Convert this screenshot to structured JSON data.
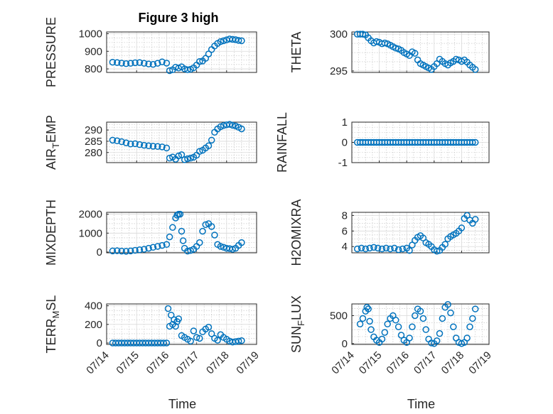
{
  "figure": {
    "title": "Figure 3 high"
  },
  "colors": {
    "marker": "#0072bd",
    "axis": "#262626",
    "grid": "#d9d9d9"
  },
  "chart_data": [
    {
      "type": "scatter",
      "ylabel": "PRESSURE",
      "xlabel": "",
      "title": "Figure 3 high",
      "xlim": [
        0,
        5
      ],
      "ylim": [
        780,
        1010
      ],
      "yticks": [
        800,
        900,
        1000
      ],
      "xticks": [
        0,
        1,
        2,
        3,
        4,
        5
      ],
      "xticklabels": [],
      "grid": true,
      "x": [
        0.2,
        0.35,
        0.5,
        0.65,
        0.8,
        0.95,
        1.1,
        1.25,
        1.4,
        1.55,
        1.7,
        1.85,
        2.0,
        2.1,
        2.2,
        2.3,
        2.4,
        2.5,
        2.6,
        2.7,
        2.8,
        2.9,
        3.0,
        3.1,
        3.2,
        3.3,
        3.4,
        3.5,
        3.6,
        3.7,
        3.8,
        3.9,
        4.0,
        4.1,
        4.2,
        4.3,
        4.4,
        4.5
      ],
      "y": [
        838,
        836,
        833,
        830,
        832,
        835,
        836,
        832,
        828,
        826,
        832,
        840,
        833,
        790,
        795,
        810,
        805,
        812,
        800,
        795,
        798,
        806,
        822,
        842,
        845,
        860,
        885,
        910,
        930,
        945,
        955,
        960,
        965,
        970,
        968,
        966,
        962,
        960
      ]
    },
    {
      "type": "scatter",
      "ylabel": "THETA",
      "xlabel": "",
      "xlim": [
        0,
        5
      ],
      "ylim": [
        294.8,
        300.3
      ],
      "yticks": [
        295,
        300
      ],
      "xticks": [
        0,
        1,
        2,
        3,
        4,
        5
      ],
      "xticklabels": [],
      "grid": true,
      "x": [
        0.2,
        0.3,
        0.4,
        0.5,
        0.6,
        0.7,
        0.8,
        0.9,
        1.0,
        1.1,
        1.2,
        1.3,
        1.4,
        1.5,
        1.6,
        1.7,
        1.8,
        1.9,
        2.0,
        2.1,
        2.2,
        2.3,
        2.4,
        2.5,
        2.6,
        2.7,
        2.8,
        2.9,
        3.0,
        3.1,
        3.2,
        3.3,
        3.4,
        3.5,
        3.6,
        3.7,
        3.8,
        3.9,
        4.0,
        4.1,
        4.2,
        4.3,
        4.4,
        4.5
      ],
      "y": [
        300,
        300,
        300,
        299.9,
        299.5,
        299.1,
        298.8,
        299,
        298.9,
        298.7,
        298.8,
        298.7,
        298.5,
        298.3,
        298.1,
        298,
        297.8,
        297.5,
        297.3,
        297.1,
        297.6,
        297.4,
        296.5,
        296,
        295.8,
        295.6,
        295.4,
        295.2,
        295.6,
        296,
        296.6,
        296.3,
        296,
        295.8,
        296.1,
        296.3,
        296.6,
        296.5,
        296.3,
        296.5,
        296.2,
        295.8,
        295.5,
        295.2
      ]
    },
    {
      "type": "scatter",
      "ylabel": "AIR_TEMP",
      "xlabel": "",
      "xlim": [
        0,
        5
      ],
      "ylim": [
        275.5,
        293.5
      ],
      "yticks": [
        280,
        285,
        290
      ],
      "xticks": [
        0,
        1,
        2,
        3,
        4,
        5
      ],
      "xticklabels": [],
      "grid": true,
      "x": [
        0.2,
        0.35,
        0.5,
        0.65,
        0.8,
        0.95,
        1.1,
        1.25,
        1.4,
        1.55,
        1.7,
        1.85,
        2.0,
        2.1,
        2.2,
        2.3,
        2.4,
        2.5,
        2.6,
        2.7,
        2.8,
        2.9,
        3.0,
        3.1,
        3.2,
        3.3,
        3.4,
        3.5,
        3.6,
        3.7,
        3.8,
        3.9,
        4.0,
        4.1,
        4.2,
        4.3,
        4.4,
        4.5
      ],
      "y": [
        285.5,
        285.2,
        284.8,
        284.3,
        283.8,
        283.9,
        283.5,
        283.2,
        283,
        282.8,
        282.7,
        282.5,
        282,
        277.5,
        278,
        277,
        278.5,
        279,
        276.8,
        277.2,
        277.5,
        277.9,
        278.8,
        280.5,
        281,
        282,
        283,
        285.5,
        289,
        290.5,
        291.5,
        292,
        292.3,
        292.5,
        292.1,
        291.8,
        291.2,
        290.5
      ]
    },
    {
      "type": "scatter",
      "ylabel": "RAINFALL",
      "xlabel": "",
      "xlim": [
        0,
        5
      ],
      "ylim": [
        -1,
        1
      ],
      "yticks": [
        -1,
        0,
        1
      ],
      "xticks": [
        0,
        1,
        2,
        3,
        4,
        5
      ],
      "xticklabels": [],
      "grid": true,
      "x": [
        0.2,
        0.3,
        0.4,
        0.5,
        0.6,
        0.7,
        0.8,
        0.9,
        1.0,
        1.1,
        1.2,
        1.3,
        1.4,
        1.5,
        1.6,
        1.7,
        1.8,
        1.9,
        2.0,
        2.1,
        2.2,
        2.3,
        2.4,
        2.5,
        2.6,
        2.7,
        2.8,
        2.9,
        3.0,
        3.1,
        3.2,
        3.3,
        3.4,
        3.5,
        3.6,
        3.7,
        3.8,
        3.9,
        4.0,
        4.1,
        4.2,
        4.3,
        4.4,
        4.5
      ],
      "y": [
        0,
        0,
        0,
        0,
        0,
        0,
        0,
        0,
        0,
        0,
        0,
        0,
        0,
        0,
        0,
        0,
        0,
        0,
        0,
        0,
        0,
        0,
        0,
        0,
        0,
        0,
        0,
        0,
        0,
        0,
        0,
        0,
        0,
        0,
        0,
        0,
        0,
        0,
        0,
        0,
        0,
        0,
        0,
        0
      ]
    },
    {
      "type": "scatter",
      "ylabel": "MIXDEPTH",
      "xlabel": "",
      "xlim": [
        0,
        5
      ],
      "ylim": [
        -40,
        2100
      ],
      "yticks": [
        0,
        1000,
        2000
      ],
      "xticks": [
        0,
        1,
        2,
        3,
        4,
        5
      ],
      "xticklabels": [],
      "grid": true,
      "x": [
        0.2,
        0.35,
        0.5,
        0.65,
        0.8,
        0.95,
        1.1,
        1.25,
        1.4,
        1.55,
        1.7,
        1.85,
        2.0,
        2.1,
        2.2,
        2.3,
        2.35,
        2.4,
        2.45,
        2.5,
        2.55,
        2.6,
        2.7,
        2.8,
        2.9,
        3.0,
        3.1,
        3.2,
        3.3,
        3.4,
        3.5,
        3.6,
        3.7,
        3.8,
        3.9,
        4.0,
        4.1,
        4.2,
        4.3,
        4.4,
        4.5
      ],
      "y": [
        60,
        70,
        50,
        40,
        60,
        90,
        120,
        150,
        200,
        250,
        300,
        350,
        400,
        800,
        1300,
        1800,
        1950,
        2000,
        2000,
        1100,
        600,
        200,
        50,
        80,
        150,
        300,
        500,
        1100,
        1450,
        1500,
        1350,
        900,
        400,
        300,
        250,
        200,
        180,
        150,
        200,
        350,
        500
      ]
    },
    {
      "type": "scatter",
      "ylabel": "H2OMIXRA",
      "xlabel": "",
      "xlim": [
        0,
        5
      ],
      "ylim": [
        3.2,
        8.4
      ],
      "yticks": [
        4,
        6,
        8
      ],
      "xticks": [
        0,
        1,
        2,
        3,
        4,
        5
      ],
      "xticklabels": [],
      "grid": true,
      "x": [
        0.2,
        0.35,
        0.5,
        0.65,
        0.8,
        0.95,
        1.1,
        1.25,
        1.4,
        1.55,
        1.7,
        1.85,
        2.0,
        2.1,
        2.2,
        2.3,
        2.4,
        2.5,
        2.6,
        2.7,
        2.8,
        2.9,
        3.0,
        3.1,
        3.2,
        3.3,
        3.4,
        3.5,
        3.6,
        3.7,
        3.8,
        3.9,
        4.0,
        4.1,
        4.2,
        4.3,
        4.4,
        4.5
      ],
      "y": [
        3.7,
        3.8,
        3.7,
        3.8,
        3.9,
        3.8,
        3.7,
        3.8,
        3.7,
        3.8,
        3.6,
        3.7,
        3.8,
        3.5,
        4.2,
        4.8,
        5.2,
        5.4,
        5.1,
        4.5,
        4.3,
        4.0,
        3.6,
        3.4,
        3.5,
        3.9,
        4.3,
        5.0,
        5.3,
        5.5,
        5.7,
        6.0,
        6.4,
        7.6,
        8.0,
        7.4,
        7.0,
        7.5
      ]
    },
    {
      "type": "scatter",
      "ylabel": "TERR_MSL",
      "xlabel": "Time",
      "xlim": [
        0,
        5
      ],
      "ylim": [
        -15,
        420
      ],
      "yticks": [
        0,
        200,
        400
      ],
      "xticks": [
        0,
        1,
        2,
        3,
        4,
        5
      ],
      "xticklabels": [
        "07/14",
        "07/15",
        "07/16",
        "07/17",
        "07/18",
        "07/19"
      ],
      "grid": true,
      "x": [
        0.2,
        0.3,
        0.4,
        0.5,
        0.6,
        0.7,
        0.8,
        0.9,
        1.0,
        1.1,
        1.2,
        1.3,
        1.4,
        1.5,
        1.6,
        1.7,
        1.8,
        1.9,
        2.0,
        2.05,
        2.1,
        2.15,
        2.2,
        2.25,
        2.3,
        2.35,
        2.4,
        2.5,
        2.6,
        2.7,
        2.8,
        2.9,
        3.0,
        3.1,
        3.2,
        3.3,
        3.4,
        3.5,
        3.6,
        3.7,
        3.8,
        3.9,
        4.0,
        4.1,
        4.2,
        4.3,
        4.4,
        4.5
      ],
      "y": [
        0,
        0,
        0,
        0,
        0,
        0,
        0,
        0,
        0,
        0,
        0,
        0,
        0,
        0,
        0,
        0,
        0,
        0,
        0,
        370,
        180,
        300,
        200,
        250,
        180,
        230,
        260,
        80,
        60,
        40,
        20,
        130,
        60,
        50,
        120,
        150,
        170,
        100,
        50,
        30,
        90,
        60,
        40,
        20,
        10,
        15,
        20,
        25
      ]
    },
    {
      "type": "scatter",
      "ylabel": "SUN_FLUX",
      "xlabel": "Time",
      "xlim": [
        0,
        5
      ],
      "ylim": [
        -15,
        710
      ],
      "yticks": [
        0,
        500
      ],
      "xticks": [
        0,
        1,
        2,
        3,
        4,
        5
      ],
      "xticklabels": [
        "07/14",
        "07/15",
        "07/16",
        "07/17",
        "07/18",
        "07/19"
      ],
      "grid": true,
      "x": [
        0.3,
        0.4,
        0.5,
        0.55,
        0.6,
        0.65,
        0.7,
        0.8,
        0.9,
        1.0,
        1.1,
        1.2,
        1.3,
        1.4,
        1.5,
        1.6,
        1.7,
        1.8,
        1.9,
        2.0,
        2.1,
        2.2,
        2.3,
        2.4,
        2.5,
        2.6,
        2.7,
        2.8,
        2.9,
        3.0,
        3.1,
        3.2,
        3.3,
        3.4,
        3.5,
        3.6,
        3.7,
        3.8,
        3.9,
        4.0,
        4.1,
        4.2,
        4.3,
        4.4,
        4.5
      ],
      "y": [
        350,
        450,
        580,
        650,
        620,
        400,
        250,
        120,
        60,
        20,
        80,
        200,
        350,
        450,
        500,
        420,
        300,
        150,
        60,
        20,
        100,
        300,
        500,
        620,
        580,
        450,
        250,
        80,
        10,
        0,
        50,
        180,
        450,
        650,
        700,
        550,
        300,
        100,
        20,
        0,
        20,
        100,
        300,
        450,
        620
      ]
    }
  ]
}
